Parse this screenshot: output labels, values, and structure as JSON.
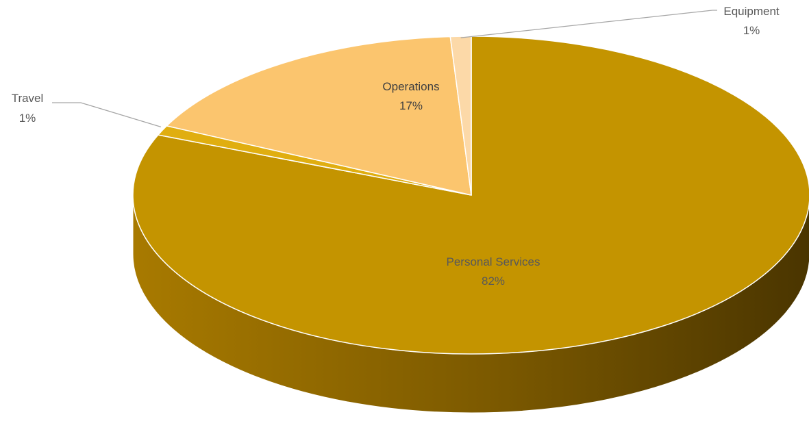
{
  "chart_data": {
    "type": "pie",
    "style": "3d",
    "title": "",
    "slices": [
      {
        "label": "Personal Services",
        "value": 82,
        "percent_label": "82%",
        "color": "#C49400"
      },
      {
        "label": "Travel",
        "value": 1,
        "percent_label": "1%",
        "color": "#E0AE10"
      },
      {
        "label": "Operations",
        "value": 17,
        "percent_label": "17%",
        "color": "#FBC56E"
      },
      {
        "label": "Equipment",
        "value": 1,
        "percent_label": "1%",
        "color": "#FCD9A8"
      }
    ],
    "side_colors": {
      "light": "#A87A00",
      "mid": "#7A5800",
      "dark": "#4A3500"
    }
  }
}
